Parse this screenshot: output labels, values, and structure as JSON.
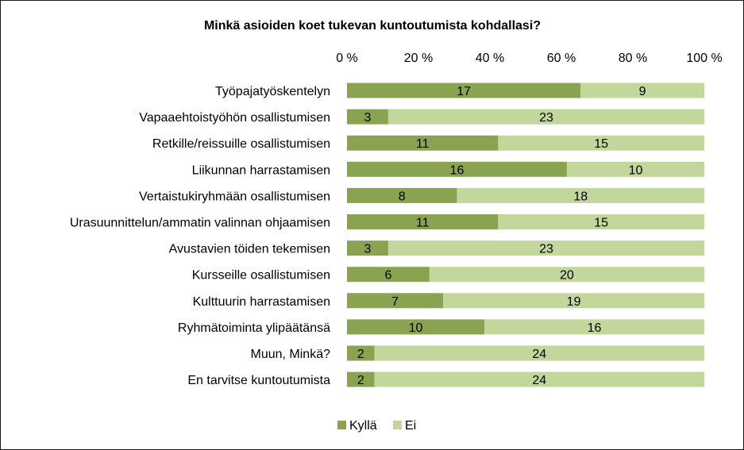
{
  "chart_data": {
    "type": "bar",
    "orientation": "horizontal",
    "stacked": "percent",
    "title": "Minkä asioiden koet tukevan kuntoutumista kohdallasi?",
    "categories": [
      "Työpajatyöskentelyn",
      "Vapaaehtoistyöhön osallistumisen",
      "Retkille/reissuille osallistumisen",
      "Liikunnan harrastamisen",
      "Vertaistukiryhmään osallistumisen",
      "Urasuunnittelun/ammatin valinnan ohjaamisen",
      "Avustavien töiden tekemisen",
      "Kursseille osallistumisen",
      "Kulttuurin harrastamisen",
      "Ryhmätoiminta ylipäätänsä",
      "Muun, Minkä?",
      "En tarvitse kuntoutumista"
    ],
    "series": [
      {
        "name": "Kyllä",
        "color": "#8aa350",
        "values": [
          17,
          3,
          11,
          16,
          8,
          11,
          3,
          6,
          7,
          10,
          2,
          2
        ]
      },
      {
        "name": "Ei",
        "color": "#c3d69b",
        "values": [
          9,
          23,
          15,
          10,
          18,
          15,
          23,
          20,
          19,
          16,
          24,
          24
        ]
      }
    ],
    "x_ticks": [
      "0 %",
      "20 %",
      "40 %",
      "60 %",
      "80 %",
      "100 %"
    ],
    "x_range": [
      0,
      100
    ],
    "axis_position": "top",
    "grid": false,
    "legend_position": "bottom"
  }
}
